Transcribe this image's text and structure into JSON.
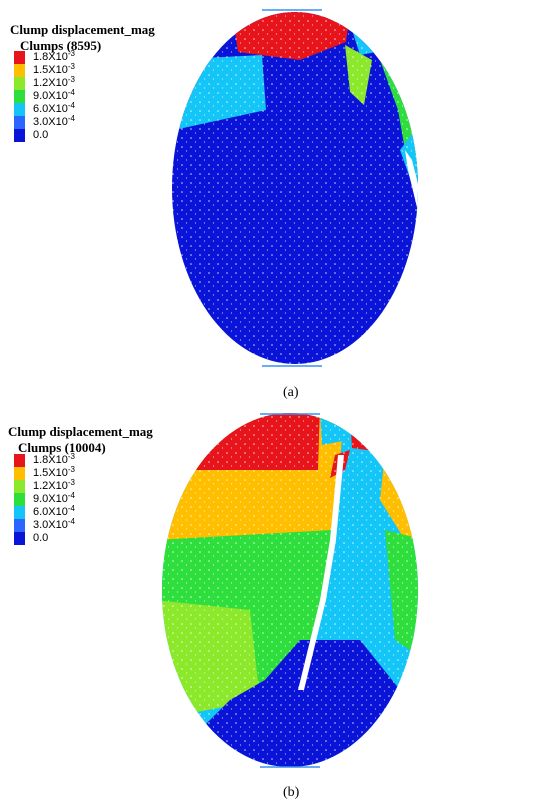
{
  "panels": [
    {
      "legend": {
        "title": "Clump displacement_mag",
        "subtitle": "Clumps (8595)",
        "entries": [
          {
            "label": "1.8X10",
            "exponent": "-3",
            "color": "#e8141c"
          },
          {
            "label": "1.5X10",
            "exponent": "-3",
            "color": "#ffbf00"
          },
          {
            "label": "1.2X10",
            "exponent": "-3",
            "color": "#8ce82a"
          },
          {
            "label": "9.0X10",
            "exponent": "-4",
            "color": "#2ede3c"
          },
          {
            "label": "6.0X10",
            "exponent": "-4",
            "color": "#14c6f8"
          },
          {
            "label": "3.0X10",
            "exponent": "-4",
            "color": "#2a66ff"
          },
          {
            "label": "0.0",
            "color": "#0a14d8"
          }
        ]
      },
      "caption": "(a)"
    },
    {
      "legend": {
        "title": "Clump displacement_mag",
        "subtitle": "Clumps (10004)",
        "entries": [
          {
            "label": "1.8X10",
            "exponent": "-3",
            "color": "#e8141c"
          },
          {
            "label": "1.5X10",
            "exponent": "-3",
            "color": "#ffbf00"
          },
          {
            "label": "1.2X10",
            "exponent": "-3",
            "color": "#8ce82a"
          },
          {
            "label": "9.0X10",
            "exponent": "-4",
            "color": "#2ede3c"
          },
          {
            "label": "6.0X10",
            "exponent": "-4",
            "color": "#14c6f8"
          },
          {
            "label": "3.0X10",
            "exponent": "-4",
            "color": "#2a66ff"
          },
          {
            "label": "0.0",
            "color": "#0a14d8"
          }
        ]
      },
      "caption": "(b)"
    }
  ]
}
